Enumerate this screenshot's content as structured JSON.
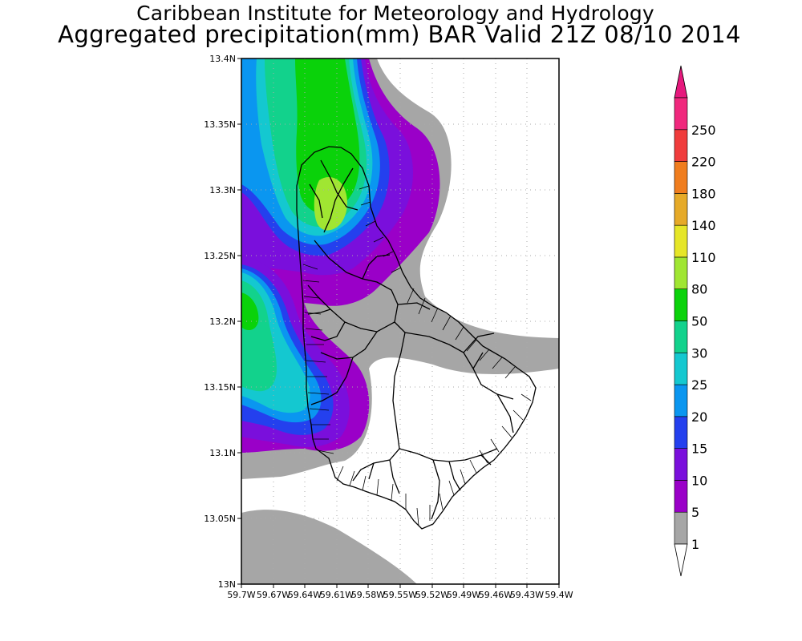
{
  "title": {
    "line1": "Caribbean Institute for Meteorology and Hydrology",
    "line2": "Aggregated precipitation(mm) BAR Valid 21Z 08/10 2014"
  },
  "map": {
    "lat_range": [
      13.0,
      13.4
    ],
    "lon_range_west": [
      59.7,
      59.4
    ],
    "lat_ticks": [
      "13.4N",
      "13.35N",
      "13.3N",
      "13.25N",
      "13.2N",
      "13.15N",
      "13.1N",
      "13.05N",
      "13N"
    ],
    "lon_ticks": [
      "59.7W",
      "59.67W",
      "59.64W",
      "59.61W",
      "59.58W",
      "59.55W",
      "59.52W",
      "59.49W",
      "59.46W",
      "59.43W",
      "59.4W"
    ],
    "grid": "dotted"
  },
  "colorbar": {
    "levels": [
      "1",
      "5",
      "10",
      "15",
      "20",
      "25",
      "30",
      "50",
      "80",
      "110",
      "140",
      "180",
      "220",
      "250"
    ],
    "colors": [
      "#a6a6a6",
      "#9a00c8",
      "#7a0fdc",
      "#2440ee",
      "#0a96f0",
      "#14c8d0",
      "#12d28c",
      "#0ad20a",
      "#a0e632",
      "#e6e628",
      "#e6aa28",
      "#f07d1e",
      "#f03c3c",
      "#f0287d"
    ],
    "min_color": "#ffffff"
  }
}
